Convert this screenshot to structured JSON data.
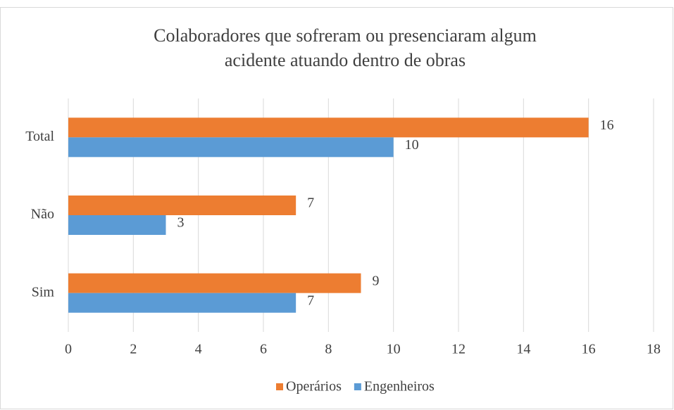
{
  "chart_data": {
    "type": "hbar",
    "title": [
      "Colaboradores que sofreram ou presenciaram algum",
      "acidente atuando dentro de obras"
    ],
    "categories": [
      "Total",
      "Não",
      "Sim"
    ],
    "series": [
      {
        "name": "Operários",
        "color": "#ED7D31",
        "values": [
          16,
          7,
          9
        ]
      },
      {
        "name": "Engenheiros",
        "color": "#5B9BD5",
        "values": [
          10,
          3,
          7
        ]
      }
    ],
    "xlim": [
      0,
      18
    ],
    "xticks": [
      0,
      2,
      4,
      6,
      8,
      10,
      12,
      14,
      16,
      18
    ],
    "grid": true,
    "legend": "bottom"
  }
}
